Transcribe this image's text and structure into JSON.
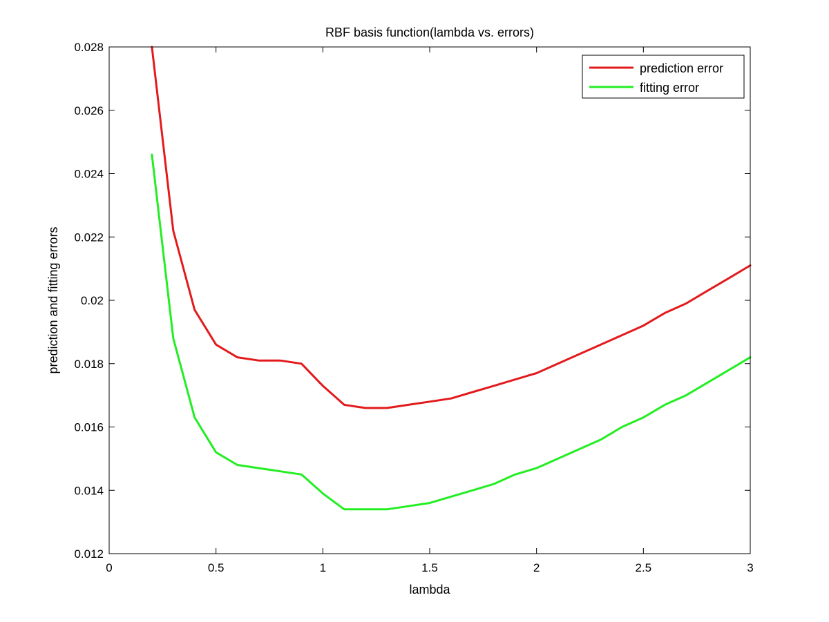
{
  "chart_data": {
    "type": "line",
    "title": "RBF basis function(lambda vs. errors)",
    "xlabel": "lambda",
    "ylabel": "prediction and fitting errors",
    "xlim": [
      0,
      3
    ],
    "ylim": [
      0.012,
      0.028
    ],
    "x_ticks": [
      0,
      0.5,
      1,
      1.5,
      2,
      2.5,
      3
    ],
    "x_tick_labels": [
      "0",
      "0.5",
      "1",
      "1.5",
      "2",
      "2.5",
      "3"
    ],
    "y_ticks": [
      0.012,
      0.014,
      0.016,
      0.018,
      0.02,
      0.022,
      0.024,
      0.026,
      0.028
    ],
    "y_tick_labels": [
      "0.012",
      "0.014",
      "0.016",
      "0.018",
      "0.02",
      "0.022",
      "0.024",
      "0.026",
      "0.028"
    ],
    "grid": false,
    "legend_position": "top-right",
    "x": [
      0.2,
      0.3,
      0.4,
      0.5,
      0.6,
      0.7,
      0.8,
      0.9,
      1.0,
      1.1,
      1.2,
      1.3,
      1.4,
      1.5,
      1.6,
      1.7,
      1.8,
      1.9,
      2.0,
      2.1,
      2.2,
      2.3,
      2.4,
      2.5,
      2.6,
      2.7,
      2.8,
      2.9,
      3.0
    ],
    "series": [
      {
        "name": "prediction error",
        "color": "#e31a1c",
        "values": [
          0.028,
          0.0222,
          0.0197,
          0.0186,
          0.0182,
          0.0181,
          0.0181,
          0.018,
          0.0173,
          0.0167,
          0.0166,
          0.0166,
          0.0167,
          0.0168,
          0.0169,
          0.0171,
          0.0173,
          0.0175,
          0.0177,
          0.018,
          0.0183,
          0.0186,
          0.0189,
          0.0192,
          0.0196,
          0.0199,
          0.0203,
          0.0207,
          0.0211
        ]
      },
      {
        "name": "fitting error",
        "color": "#22ee22",
        "values": [
          0.0246,
          0.0188,
          0.0163,
          0.0152,
          0.0148,
          0.0147,
          0.0146,
          0.0145,
          0.0139,
          0.0134,
          0.0134,
          0.0134,
          0.0135,
          0.0136,
          0.0138,
          0.014,
          0.0142,
          0.0145,
          0.0147,
          0.015,
          0.0153,
          0.0156,
          0.016,
          0.0163,
          0.0167,
          0.017,
          0.0174,
          0.0178,
          0.0182
        ]
      }
    ]
  }
}
